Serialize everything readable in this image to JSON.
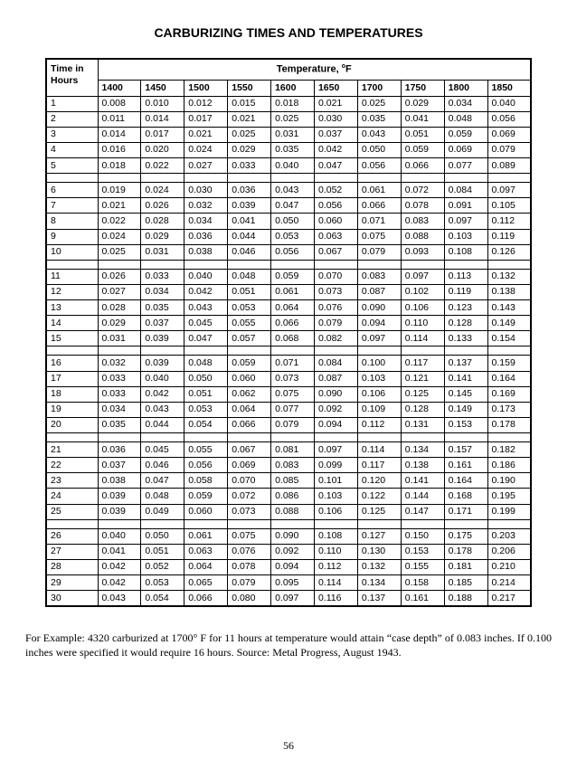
{
  "title": "CARBURIZING TIMES AND TEMPERATURES",
  "header": {
    "hours_label_1": "Time in",
    "hours_label_2": "Hours",
    "temp_group_label": "Temperature, ",
    "temp_group_unit": "o",
    "temp_group_suffix": "F",
    "temps": [
      "1400",
      "1450",
      "1500",
      "1550",
      "1600",
      "1650",
      "1700",
      "1750",
      "1800",
      "1850"
    ]
  },
  "groups": [
    [
      {
        "h": "1",
        "v": [
          "0.008",
          "0.010",
          "0.012",
          "0.015",
          "0.018",
          "0.021",
          "0.025",
          "0.029",
          "0.034",
          "0.040"
        ]
      },
      {
        "h": "2",
        "v": [
          "0.011",
          "0.014",
          "0.017",
          "0.021",
          "0.025",
          "0.030",
          "0.035",
          "0.041",
          "0.048",
          "0.056"
        ]
      },
      {
        "h": "3",
        "v": [
          "0.014",
          "0.017",
          "0.021",
          "0.025",
          "0.031",
          "0.037",
          "0.043",
          "0.051",
          "0.059",
          "0.069"
        ]
      },
      {
        "h": "4",
        "v": [
          "0.016",
          "0.020",
          "0.024",
          "0.029",
          "0.035",
          "0.042",
          "0.050",
          "0.059",
          "0.069",
          "0.079"
        ]
      },
      {
        "h": "5",
        "v": [
          "0.018",
          "0.022",
          "0.027",
          "0.033",
          "0.040",
          "0.047",
          "0.056",
          "0.066",
          "0.077",
          "0.089"
        ]
      }
    ],
    [
      {
        "h": "6",
        "v": [
          "0.019",
          "0.024",
          "0.030",
          "0.036",
          "0.043",
          "0.052",
          "0.061",
          "0.072",
          "0.084",
          "0.097"
        ]
      },
      {
        "h": "7",
        "v": [
          "0.021",
          "0.026",
          "0.032",
          "0.039",
          "0.047",
          "0.056",
          "0.066",
          "0.078",
          "0.091",
          "0.105"
        ]
      },
      {
        "h": "8",
        "v": [
          "0.022",
          "0.028",
          "0.034",
          "0.041",
          "0.050",
          "0.060",
          "0.071",
          "0.083",
          "0.097",
          "0.112"
        ]
      },
      {
        "h": "9",
        "v": [
          "0.024",
          "0.029",
          "0.036",
          "0.044",
          "0.053",
          "0.063",
          "0.075",
          "0.088",
          "0.103",
          "0.119"
        ]
      },
      {
        "h": "10",
        "v": [
          "0.025",
          "0.031",
          "0.038",
          "0.046",
          "0.056",
          "0.067",
          "0.079",
          "0.093",
          "0.108",
          "0.126"
        ]
      }
    ],
    [
      {
        "h": "11",
        "v": [
          "0.026",
          "0.033",
          "0.040",
          "0.048",
          "0.059",
          "0.070",
          "0.083",
          "0.097",
          "0.113",
          "0.132"
        ]
      },
      {
        "h": "12",
        "v": [
          "0.027",
          "0.034",
          "0.042",
          "0.051",
          "0.061",
          "0.073",
          "0.087",
          "0.102",
          "0.119",
          "0.138"
        ]
      },
      {
        "h": "13",
        "v": [
          "0.028",
          "0.035",
          "0.043",
          "0.053",
          "0.064",
          "0.076",
          "0.090",
          "0.106",
          "0.123",
          "0.143"
        ]
      },
      {
        "h": "14",
        "v": [
          "0.029",
          "0.037",
          "0.045",
          "0.055",
          "0.066",
          "0.079",
          "0.094",
          "0.110",
          "0.128",
          "0.149"
        ]
      },
      {
        "h": "15",
        "v": [
          "0.031",
          "0.039",
          "0.047",
          "0.057",
          "0.068",
          "0.082",
          "0.097",
          "0.114",
          "0.133",
          "0.154"
        ]
      }
    ],
    [
      {
        "h": "16",
        "v": [
          "0.032",
          "0.039",
          "0.048",
          "0.059",
          "0.071",
          "0.084",
          "0.100",
          "0.117",
          "0.137",
          "0.159"
        ]
      },
      {
        "h": "17",
        "v": [
          "0.033",
          "0.040",
          "0.050",
          "0.060",
          "0.073",
          "0.087",
          "0.103",
          "0.121",
          "0.141",
          "0.164"
        ]
      },
      {
        "h": "18",
        "v": [
          "0.033",
          "0.042",
          "0.051",
          "0.062",
          "0.075",
          "0.090",
          "0.106",
          "0.125",
          "0.145",
          "0.169"
        ]
      },
      {
        "h": "19",
        "v": [
          "0.034",
          "0.043",
          "0.053",
          "0.064",
          "0.077",
          "0.092",
          "0.109",
          "0.128",
          "0.149",
          "0.173"
        ]
      },
      {
        "h": "20",
        "v": [
          "0.035",
          "0.044",
          "0.054",
          "0.066",
          "0.079",
          "0.094",
          "0.112",
          "0.131",
          "0.153",
          "0.178"
        ]
      }
    ],
    [
      {
        "h": "21",
        "v": [
          "0.036",
          "0.045",
          "0.055",
          "0.067",
          "0.081",
          "0.097",
          "0.114",
          "0.134",
          "0.157",
          "0.182"
        ]
      },
      {
        "h": "22",
        "v": [
          "0.037",
          "0.046",
          "0.056",
          "0.069",
          "0.083",
          "0.099",
          "0.117",
          "0.138",
          "0.161",
          "0.186"
        ]
      },
      {
        "h": "23",
        "v": [
          "0.038",
          "0.047",
          "0.058",
          "0.070",
          "0.085",
          "0.101",
          "0.120",
          "0.141",
          "0.164",
          "0.190"
        ]
      },
      {
        "h": "24",
        "v": [
          "0.039",
          "0.048",
          "0.059",
          "0.072",
          "0.086",
          "0.103",
          "0.122",
          "0.144",
          "0.168",
          "0.195"
        ]
      },
      {
        "h": "25",
        "v": [
          "0.039",
          "0.049",
          "0.060",
          "0.073",
          "0.088",
          "0.106",
          "0.125",
          "0.147",
          "0.171",
          "0.199"
        ]
      }
    ],
    [
      {
        "h": "26",
        "v": [
          "0.040",
          "0.050",
          "0.061",
          "0.075",
          "0.090",
          "0.108",
          "0.127",
          "0.150",
          "0.175",
          "0.203"
        ]
      },
      {
        "h": "27",
        "v": [
          "0.041",
          "0.051",
          "0.063",
          "0.076",
          "0.092",
          "0.110",
          "0.130",
          "0.153",
          "0.178",
          "0.206"
        ]
      },
      {
        "h": "28",
        "v": [
          "0.042",
          "0.052",
          "0.064",
          "0.078",
          "0.094",
          "0.112",
          "0.132",
          "0.155",
          "0.181",
          "0.210"
        ]
      },
      {
        "h": "29",
        "v": [
          "0.042",
          "0.053",
          "0.065",
          "0.079",
          "0.095",
          "0.114",
          "0.134",
          "0.158",
          "0.185",
          "0.214"
        ]
      },
      {
        "h": "30",
        "v": [
          "0.043",
          "0.054",
          "0.066",
          "0.080",
          "0.097",
          "0.116",
          "0.137",
          "0.161",
          "0.188",
          "0.217"
        ]
      }
    ]
  ],
  "caption": "For Example: 4320 carburized at 1700° F for 11 hours at temperature would attain “case depth” of 0.083 inches.  If 0.100 inches were specified it would require 16 hours.  Source:   Metal Progress, August 1943.",
  "page_number": "56"
}
